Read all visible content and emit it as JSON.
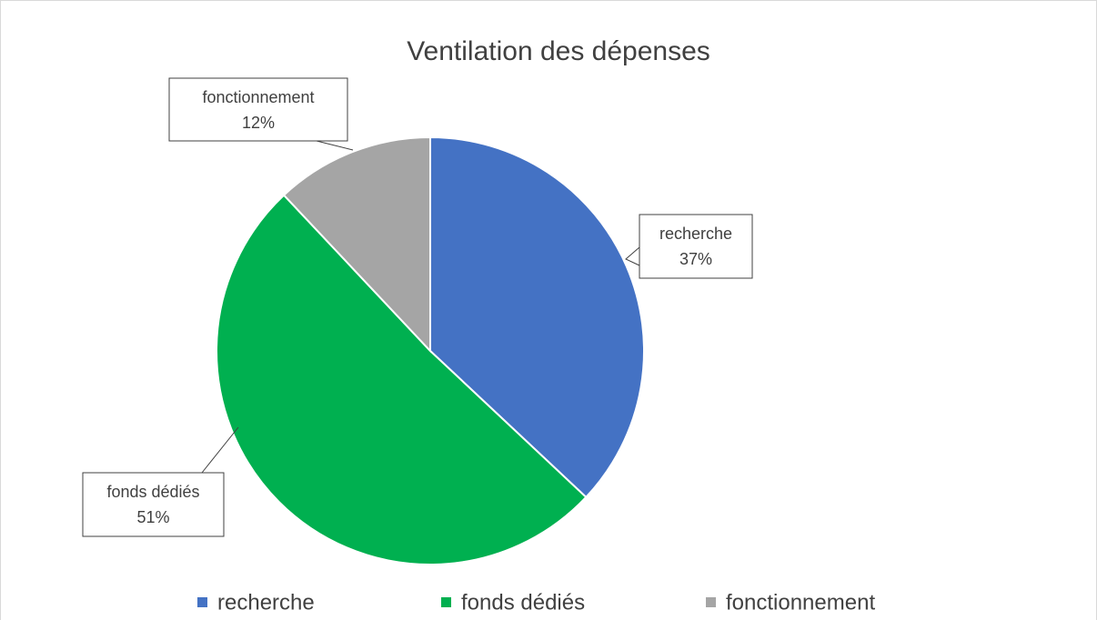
{
  "chart_data": {
    "type": "pie",
    "title": "Ventilation des dépenses",
    "categories": [
      "recherche",
      "fonds dédiés",
      "fonctionnement"
    ],
    "values": [
      37,
      51,
      12
    ],
    "value_labels": [
      "37%",
      "51%",
      "12%"
    ],
    "colors": [
      "#4472c4",
      "#00b050",
      "#a5a5a5"
    ],
    "legend": "bottom"
  }
}
